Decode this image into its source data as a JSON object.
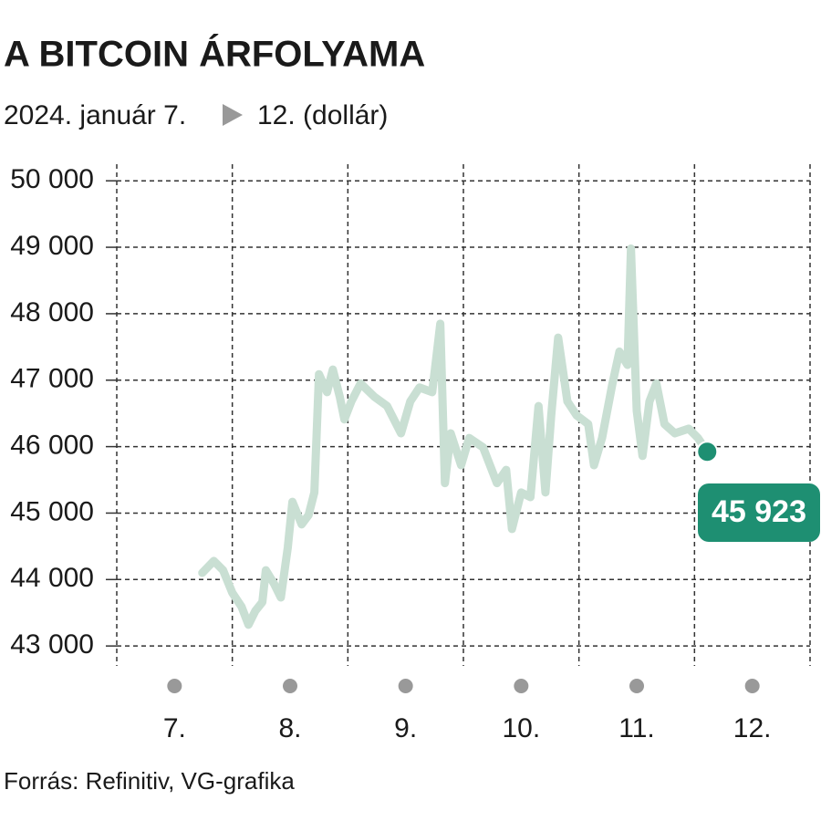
{
  "chart_data": {
    "type": "line",
    "title": "A BITCOIN ÁRFOLYAMA",
    "subtitle_start": "2024. január 7.",
    "subtitle_end": "12. (dollár)",
    "source": "Forrás: Refinitiv, VG-grafika",
    "color": "#c9dfd3",
    "marker_color": "#1e8f72",
    "x": [
      7.74,
      7.84,
      7.92,
      8.0,
      8.08,
      8.14,
      8.2,
      8.26,
      8.29,
      8.36,
      8.42,
      8.48,
      8.52,
      8.6,
      8.66,
      8.71,
      8.75,
      8.82,
      8.87,
      8.93,
      8.97,
      9.03,
      9.11,
      9.23,
      9.34,
      9.46,
      9.54,
      9.62,
      9.73,
      9.8,
      9.84,
      9.89,
      9.98,
      10.05,
      10.17,
      10.29,
      10.37,
      10.42,
      10.5,
      10.58,
      10.65,
      10.71,
      10.76,
      10.82,
      10.9,
      10.98,
      11.08,
      11.13,
      11.2,
      11.29,
      11.35,
      11.42,
      11.45,
      11.5,
      11.55,
      11.61,
      11.67,
      11.74,
      11.83,
      11.95,
      12.03,
      12.11
    ],
    "values": [
      44100,
      44280,
      44140,
      43800,
      43590,
      43320,
      43530,
      43660,
      44140,
      43940,
      43730,
      44480,
      45170,
      44830,
      44970,
      45310,
      47090,
      46820,
      47160,
      46750,
      46410,
      46680,
      46950,
      46750,
      46610,
      46200,
      46680,
      46890,
      46820,
      47850,
      45450,
      46200,
      45720,
      46130,
      45990,
      45450,
      45650,
      44760,
      45310,
      45240,
      46610,
      45310,
      46470,
      47640,
      46680,
      46470,
      46340,
      45720,
      46130,
      46950,
      47430,
      47230,
      48980,
      46540,
      45860,
      46680,
      46950,
      46340,
      46200,
      46270,
      46130,
      45923
    ],
    "value_labels": [
      null,
      null,
      null,
      null,
      null,
      null,
      null,
      null,
      null,
      null,
      null,
      null,
      null,
      null,
      null,
      null,
      null,
      null,
      null,
      null,
      null,
      null,
      null,
      null,
      null,
      null,
      null,
      null,
      null,
      null,
      null,
      null,
      null,
      null,
      null,
      null,
      null,
      null,
      null,
      null,
      null,
      null,
      null,
      null,
      null,
      null,
      null,
      null,
      null,
      null,
      null,
      null,
      null,
      null,
      null,
      null,
      null,
      null,
      null,
      null,
      null,
      "45 923"
    ],
    "xlim": [
      7,
      13
    ],
    "xticks": [
      {
        "value": 7.5,
        "label": "7."
      },
      {
        "value": 8.5,
        "label": "8."
      },
      {
        "value": 9.5,
        "label": "9."
      },
      {
        "value": 10.5,
        "label": "10."
      },
      {
        "value": 11.5,
        "label": "11."
      },
      {
        "value": 12.5,
        "label": "12."
      }
    ],
    "xgrid": [
      7,
      8,
      9,
      10,
      11,
      12,
      13
    ],
    "ylim": [
      42700,
      50250
    ],
    "yticks": [
      {
        "value": 43000,
        "label": "43 000"
      },
      {
        "value": 44000,
        "label": "44 000"
      },
      {
        "value": 45000,
        "label": "45 000"
      },
      {
        "value": 46000,
        "label": "46 000"
      },
      {
        "value": 47000,
        "label": "47 000"
      },
      {
        "value": 48000,
        "label": "48 000"
      },
      {
        "value": 49000,
        "label": "49 000"
      },
      {
        "value": 50000,
        "label": "50 000"
      }
    ],
    "grid": true
  }
}
